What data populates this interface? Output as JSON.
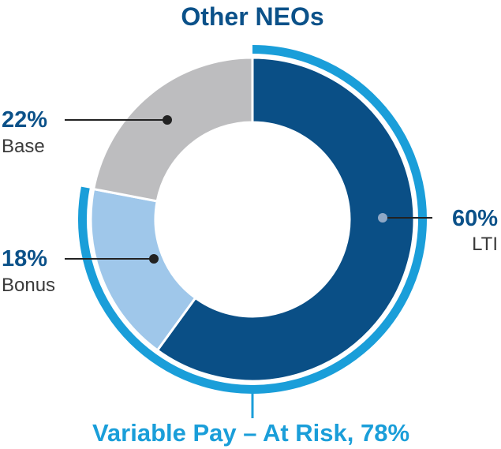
{
  "colors": {
    "ring_accent": "#1a9ed9",
    "label_blue": "#0b5189",
    "label_text": "#3a3a3a"
  },
  "chart_data": {
    "type": "pie",
    "title": "Other NEOs",
    "slices": [
      {
        "key": "lti",
        "value": 60,
        "pct_label": "60%",
        "name": "LTI",
        "color": "#0a4f86"
      },
      {
        "key": "bonus",
        "value": 18,
        "pct_label": "18%",
        "name": "Bonus",
        "color": "#9fc7ea"
      },
      {
        "key": "base",
        "value": 22,
        "pct_label": "22%",
        "name": "Base",
        "color": "#bdbdbf"
      }
    ],
    "variable_pay": {
      "label": "Variable Pay – At Risk, 78%",
      "value": 78,
      "covers": [
        "lti",
        "bonus"
      ]
    }
  }
}
